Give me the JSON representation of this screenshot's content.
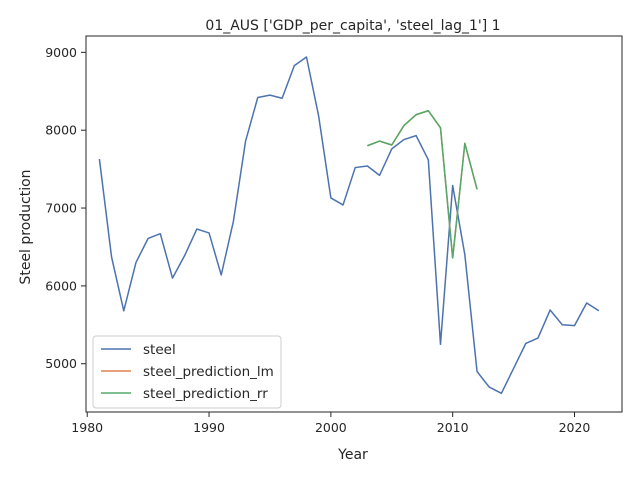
{
  "chart_data": {
    "type": "line",
    "title": "01_AUS ['GDP_per_capita', 'steel_lag_1'] 1",
    "xlabel": "Year",
    "ylabel": "Steel production",
    "xlim": [
      1979.9,
      2023.9
    ],
    "ylim": [
      4380,
      9210
    ],
    "xticks": [
      1980,
      1990,
      2000,
      2010,
      2020
    ],
    "yticks": [
      5000,
      6000,
      7000,
      8000,
      9000
    ],
    "grid": false,
    "legend_position": "lower-left",
    "series": [
      {
        "name": "steel",
        "color": "#4c72b0",
        "x": [
          1981,
          1982,
          1983,
          1984,
          1985,
          1986,
          1987,
          1988,
          1989,
          1990,
          1991,
          1992,
          1993,
          1994,
          1995,
          1996,
          1997,
          1998,
          1999,
          2000,
          2001,
          2002,
          2003,
          2004,
          2005,
          2006,
          2007,
          2008,
          2009,
          2010,
          2011,
          2012,
          2013,
          2014,
          2015,
          2016,
          2017,
          2018,
          2019,
          2020,
          2021,
          2022
        ],
        "values": [
          7630,
          6370,
          5680,
          6300,
          6610,
          6670,
          6100,
          6390,
          6730,
          6680,
          6140,
          6830,
          7860,
          8420,
          8450,
          8410,
          8830,
          8940,
          8180,
          7130,
          7040,
          7520,
          7540,
          7420,
          7760,
          7880,
          7930,
          7620,
          5250,
          7290,
          6400,
          4900,
          4700,
          4620,
          4940,
          5260,
          5330,
          5690,
          5500,
          5490,
          5780,
          5680
        ]
      },
      {
        "name": "steel_prediction_lm",
        "color": "#dd8452",
        "x": [
          2003,
          2004,
          2005,
          2006,
          2007,
          2008,
          2009,
          2010,
          2011,
          2012
        ],
        "values": [
          7800,
          7860,
          7810,
          8060,
          8200,
          8250,
          8030,
          6360,
          7830,
          7240
        ]
      },
      {
        "name": "steel_prediction_rr",
        "color": "#55a868",
        "x": [
          2003,
          2004,
          2005,
          2006,
          2007,
          2008,
          2009,
          2010,
          2011,
          2012
        ],
        "values": [
          7800,
          7860,
          7810,
          8060,
          8200,
          8250,
          8030,
          6360,
          7830,
          7240
        ]
      }
    ]
  }
}
